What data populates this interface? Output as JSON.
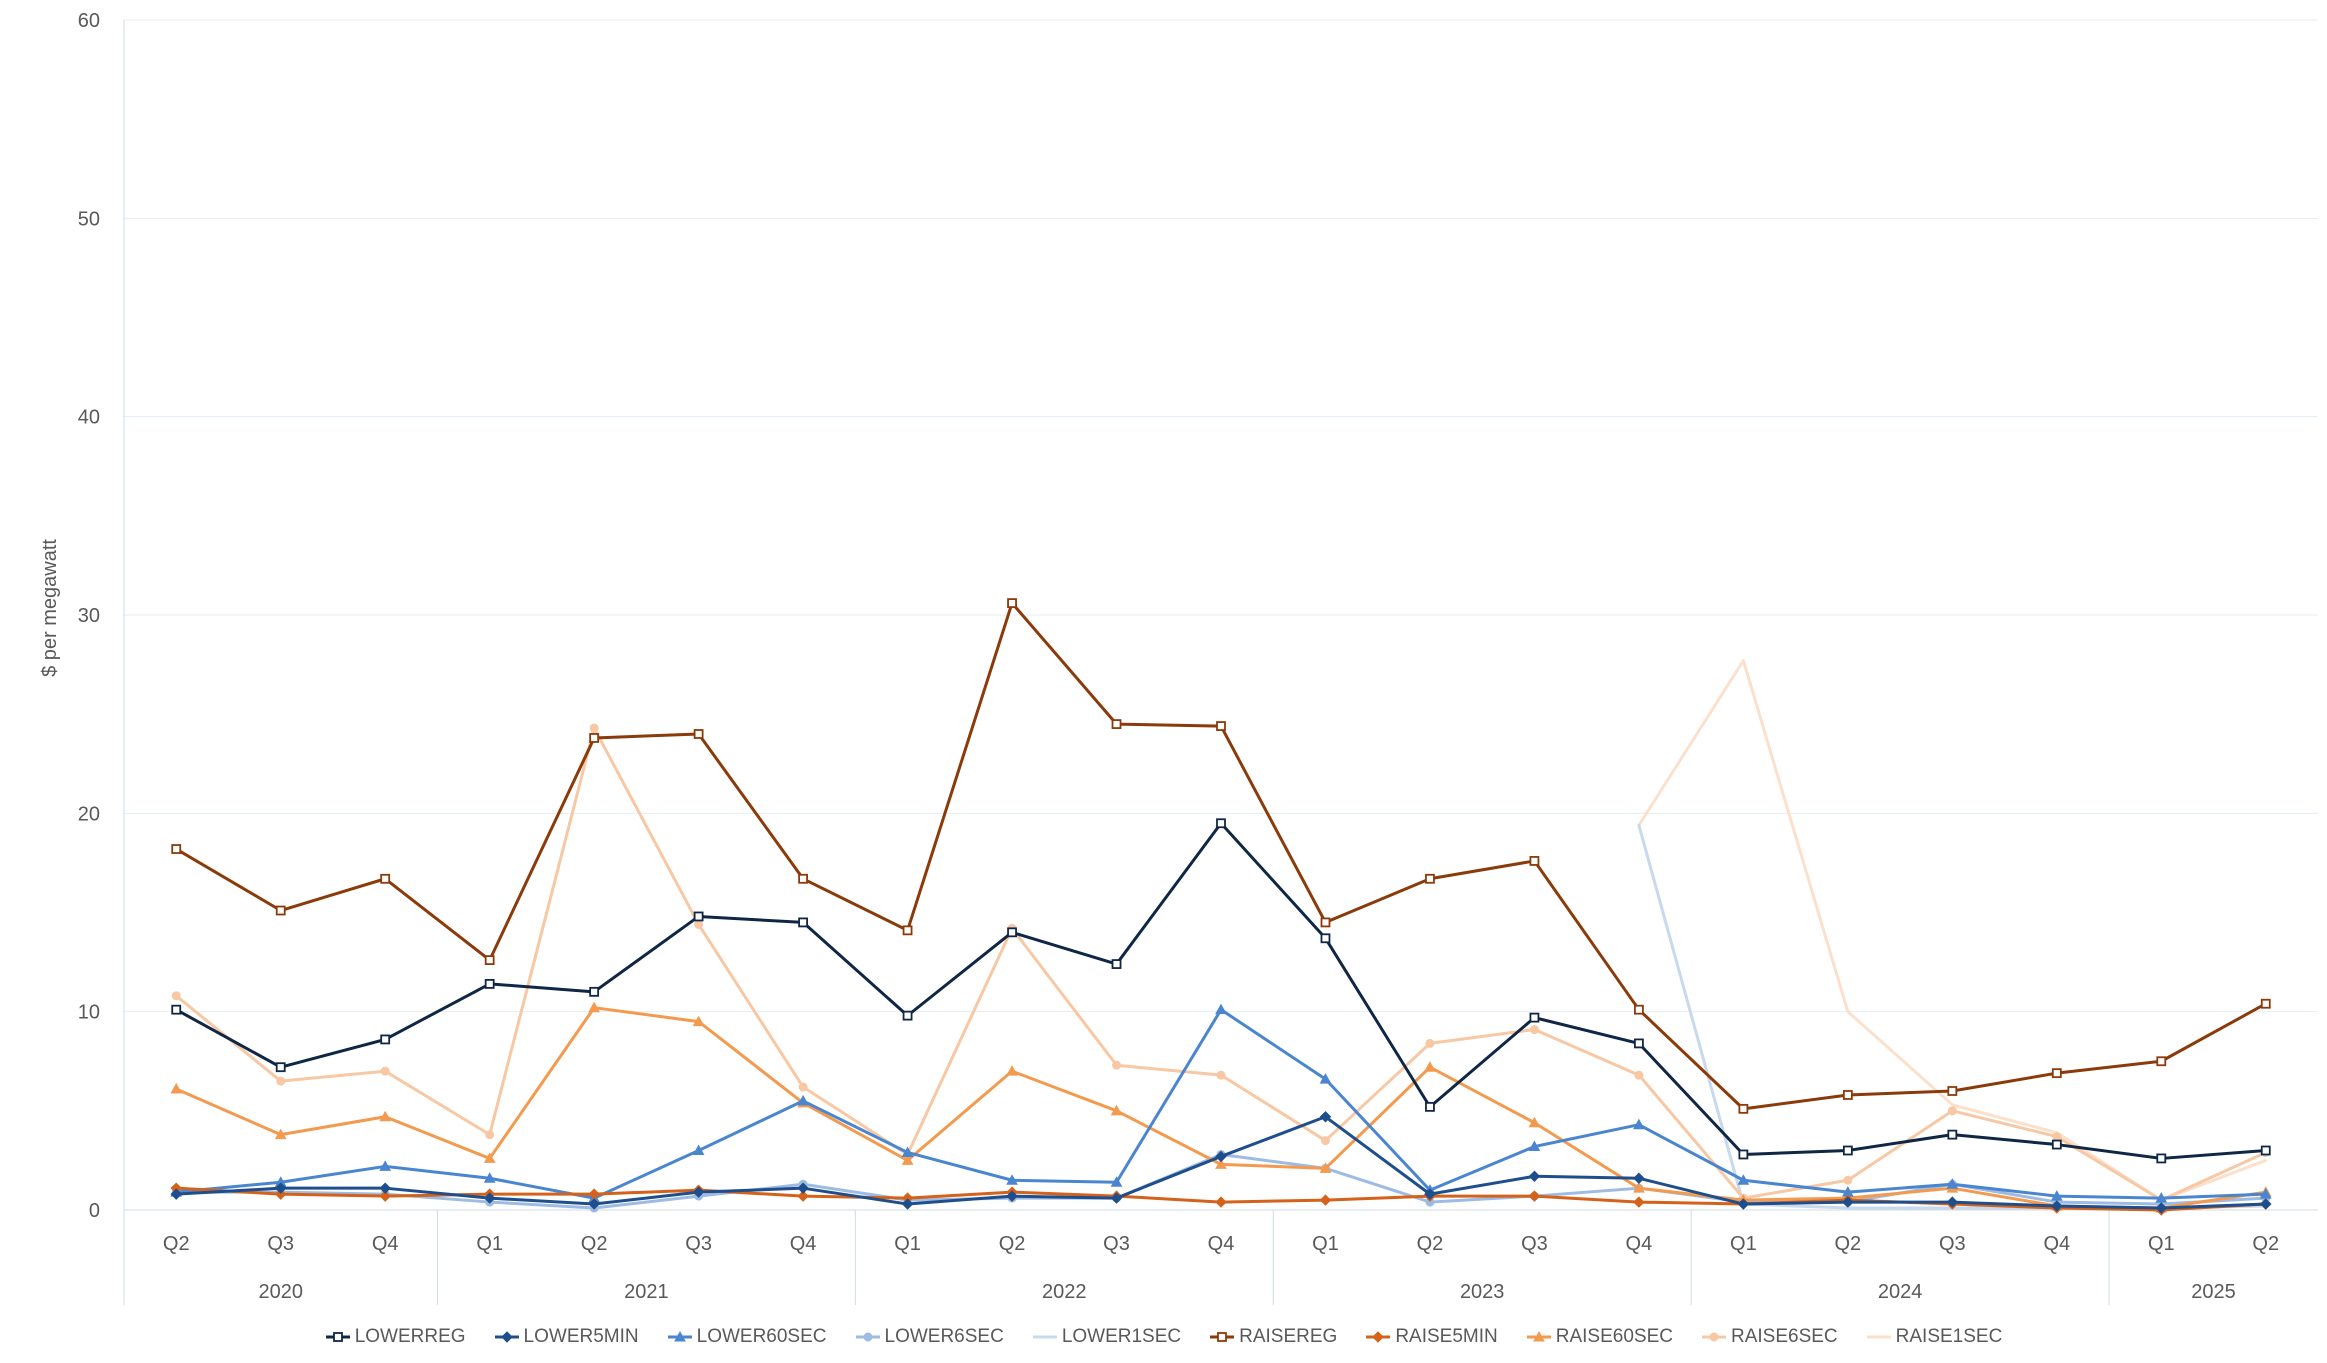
{
  "chart_data": {
    "type": "line",
    "ylabel": "$ per megawatt",
    "ylim": [
      0,
      60
    ],
    "yticks": [
      0,
      10,
      20,
      30,
      40,
      50,
      60
    ],
    "grid": true,
    "legend_position": "bottom",
    "categories": [
      "Q2",
      "Q3",
      "Q4",
      "Q1",
      "Q2",
      "Q3",
      "Q4",
      "Q1",
      "Q2",
      "Q3",
      "Q4",
      "Q1",
      "Q2",
      "Q3",
      "Q4",
      "Q1",
      "Q2",
      "Q3",
      "Q4",
      "Q1",
      "Q2"
    ],
    "year_groups": [
      {
        "label": "2020",
        "count": 3
      },
      {
        "label": "2021",
        "count": 4
      },
      {
        "label": "2022",
        "count": 4
      },
      {
        "label": "2023",
        "count": 4
      },
      {
        "label": "2024",
        "count": 4
      },
      {
        "label": "2025",
        "count": 2
      }
    ],
    "series": [
      {
        "name": "LOWERREG",
        "color": "#0f2745",
        "marker": "square",
        "values": [
          10.1,
          7.2,
          8.6,
          11.4,
          11.0,
          14.8,
          14.5,
          9.8,
          14.0,
          12.4,
          19.5,
          13.7,
          5.2,
          9.7,
          8.4,
          2.8,
          3.0,
          3.8,
          3.3,
          2.6,
          3.0
        ]
      },
      {
        "name": "LOWER5MIN",
        "color": "#1f4e8c",
        "marker": "diamond",
        "values": [
          0.8,
          1.1,
          1.1,
          0.6,
          0.3,
          0.9,
          1.1,
          0.3,
          0.7,
          0.6,
          2.7,
          4.7,
          0.8,
          1.7,
          1.6,
          0.3,
          0.4,
          0.4,
          0.2,
          0.1,
          0.3
        ]
      },
      {
        "name": "LOWER60SEC",
        "color": "#4a86cf",
        "marker": "triangle",
        "values": [
          0.9,
          1.4,
          2.2,
          1.6,
          0.6,
          3.0,
          5.5,
          2.9,
          1.5,
          1.4,
          10.1,
          6.6,
          1.0,
          3.2,
          4.3,
          1.5,
          0.9,
          1.3,
          0.7,
          0.6,
          0.8
        ]
      },
      {
        "name": "LOWER6SEC",
        "color": "#9dbbe3",
        "marker": "circle",
        "values": [
          0.9,
          0.9,
          0.8,
          0.4,
          0.1,
          0.7,
          1.3,
          0.5,
          0.6,
          0.6,
          2.8,
          2.1,
          0.4,
          0.7,
          1.1,
          0.4,
          0.4,
          1.3,
          0.4,
          0.3,
          0.6
        ]
      },
      {
        "name": "LOWER1SEC",
        "color": "#c8d9ee",
        "marker": "none",
        "values": [
          null,
          null,
          null,
          null,
          null,
          null,
          null,
          null,
          null,
          null,
          null,
          null,
          null,
          null,
          19.4,
          0.3,
          0.1,
          0.1,
          0.1,
          0.1,
          0.2
        ]
      },
      {
        "name": "RAISEREG",
        "color": "#8b3a0a",
        "marker": "square",
        "values": [
          18.2,
          15.1,
          16.7,
          12.6,
          23.8,
          24.0,
          16.7,
          14.1,
          30.6,
          24.5,
          24.4,
          14.5,
          16.7,
          17.6,
          10.1,
          5.1,
          5.8,
          6.0,
          6.9,
          7.5,
          10.4
        ]
      },
      {
        "name": "RAISE5MIN",
        "color": "#d4621a",
        "marker": "diamond",
        "values": [
          1.1,
          0.8,
          0.7,
          0.8,
          0.8,
          1.0,
          0.7,
          0.6,
          0.9,
          0.7,
          0.4,
          0.5,
          0.7,
          0.7,
          0.4,
          0.3,
          0.5,
          0.3,
          0.1,
          0.0,
          0.3
        ]
      },
      {
        "name": "RAISE60SEC",
        "color": "#f39a4e",
        "marker": "triangle",
        "values": [
          6.1,
          3.8,
          4.7,
          2.6,
          10.2,
          9.5,
          5.4,
          2.5,
          7.0,
          5.0,
          2.3,
          2.1,
          7.2,
          4.4,
          1.1,
          0.5,
          0.6,
          1.1,
          0.2,
          0.1,
          0.9
        ]
      },
      {
        "name": "RAISE6SEC",
        "color": "#f7c8a3",
        "marker": "circle",
        "values": [
          10.8,
          6.5,
          7.0,
          3.8,
          24.3,
          14.4,
          6.2,
          2.8,
          14.2,
          7.3,
          6.8,
          3.5,
          8.4,
          9.1,
          6.8,
          0.6,
          1.5,
          5.0,
          3.7,
          0.5,
          2.9
        ]
      },
      {
        "name": "RAISE1SEC",
        "color": "#fbe0cc",
        "marker": "none",
        "values": [
          null,
          null,
          null,
          null,
          null,
          null,
          null,
          null,
          null,
          null,
          null,
          null,
          null,
          null,
          19.4,
          27.7,
          10.0,
          5.3,
          3.9,
          0.5,
          2.5
        ]
      }
    ]
  }
}
